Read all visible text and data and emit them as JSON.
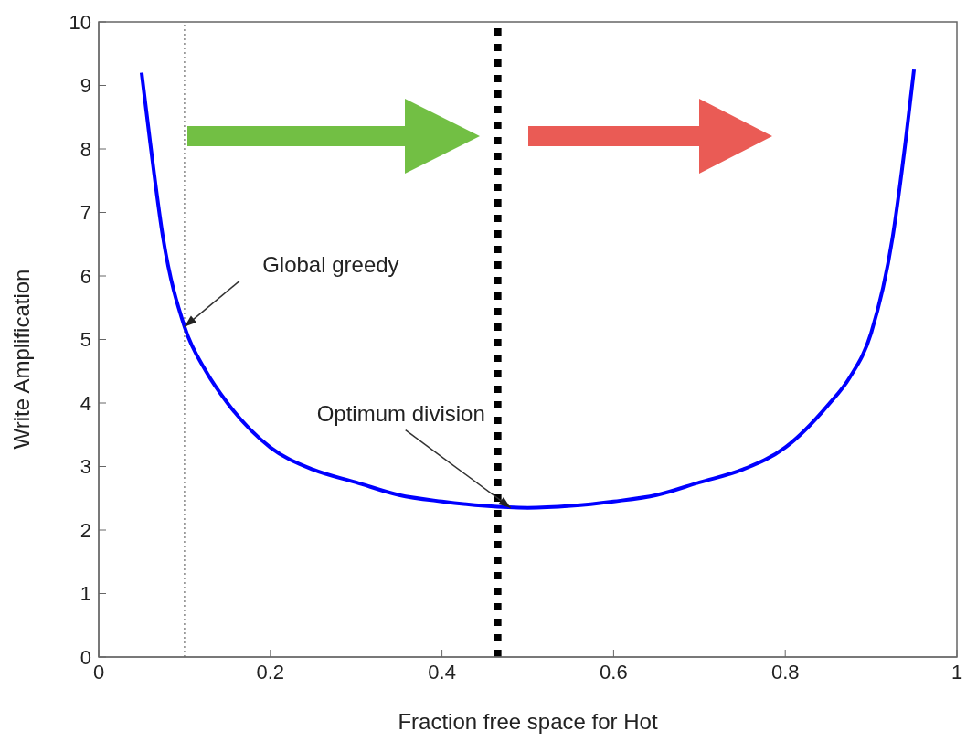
{
  "chart_data": {
    "type": "line",
    "xlabel": "Fraction free space for Hot",
    "ylabel": "Write Amplification",
    "x": [
      0.05,
      0.06,
      0.075,
      0.1,
      0.125,
      0.15,
      0.2,
      0.25,
      0.3,
      0.35,
      0.4,
      0.45,
      0.5,
      0.55,
      0.6,
      0.65,
      0.7,
      0.75,
      0.8,
      0.85,
      0.875,
      0.9,
      0.925,
      0.94,
      0.95
    ],
    "series": [
      {
        "color": "#0000ff",
        "values": [
          9.2,
          8.1,
          6.6,
          5.2,
          4.5,
          4.0,
          3.3,
          2.95,
          2.75,
          2.55,
          2.45,
          2.38,
          2.35,
          2.38,
          2.45,
          2.55,
          2.75,
          2.95,
          3.3,
          3.97,
          4.4,
          5.1,
          6.6,
          8.1,
          9.25
        ]
      }
    ],
    "xlim": [
      0,
      1
    ],
    "xticks": [
      0,
      0.2,
      0.4,
      0.6,
      0.8,
      1
    ],
    "ylim": [
      0,
      10
    ],
    "yticks": [
      0,
      1,
      2,
      3,
      4,
      5,
      6,
      7,
      8,
      9,
      10
    ],
    "grid": false,
    "legend": false,
    "marker": "none",
    "line_style": "solid",
    "ref_lines": [
      {
        "axis": "x",
        "value": 0.1,
        "color": "#888888",
        "line_style": "dotted"
      },
      {
        "axis": "x",
        "value": 0.465,
        "color": "#000000",
        "line_style": "dotted"
      }
    ],
    "annotations": [
      {
        "text": "Global greedy",
        "x": 0.1,
        "y": 5.2
      },
      {
        "text": "Optimum division",
        "x": 0.48,
        "y": 2.35
      }
    ]
  }
}
